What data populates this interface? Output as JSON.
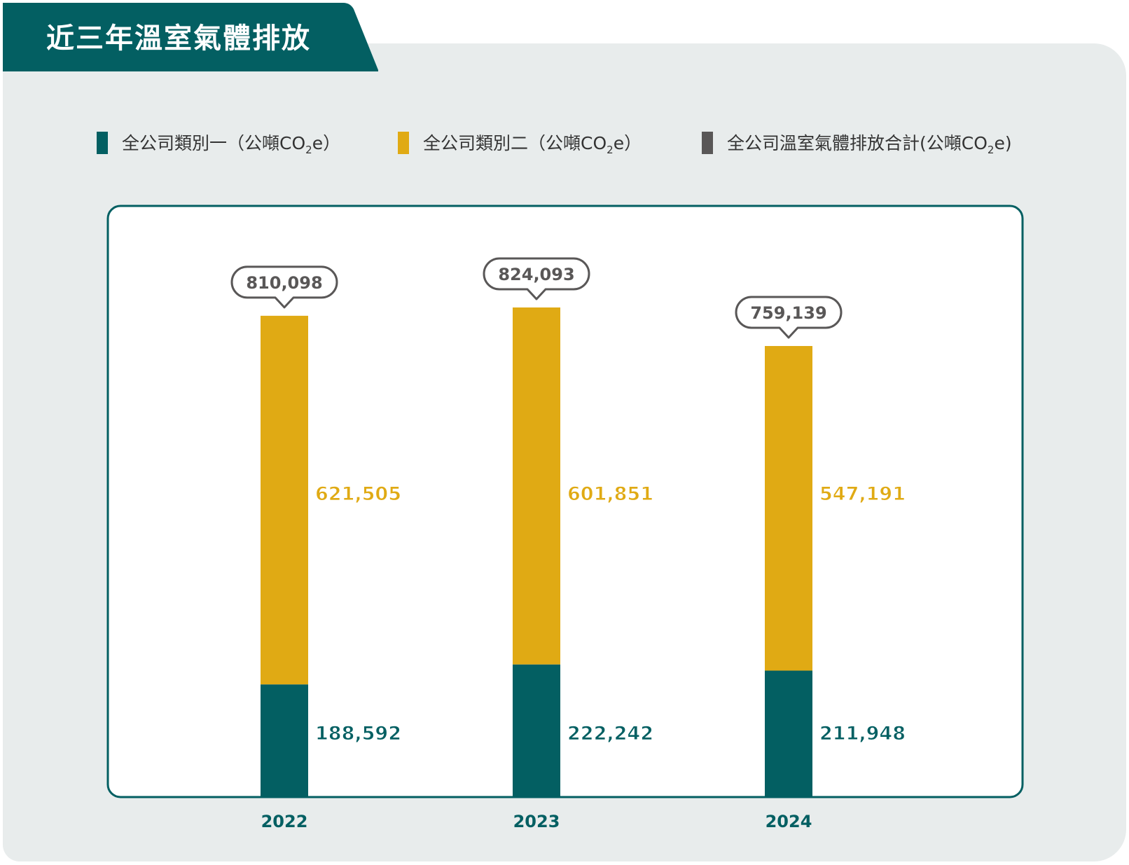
{
  "title": "近三年溫室氣體排放",
  "legend": [
    {
      "label_main": "全公司類別一（公噸CO",
      "label_sub": "2",
      "label_tail": "e）",
      "color": "#035f62"
    },
    {
      "label_main": "全公司類別二（公噸CO",
      "label_sub": "2",
      "label_tail": "e）",
      "color": "#e0aa14"
    },
    {
      "label_main": "全公司溫室氣體排放合計(公噸CO",
      "label_sub": "2",
      "label_tail": "e)",
      "color": "#595757"
    }
  ],
  "colors": {
    "header": "#035f62",
    "panel": "#e8ecec",
    "scope1": "#035f62",
    "scope2": "#e0aa14",
    "total": "#595757",
    "frame": "#035f62"
  },
  "chart_data": {
    "type": "bar",
    "stacked": true,
    "categories": [
      "2022",
      "2023",
      "2024"
    ],
    "series": [
      {
        "name": "全公司類別一（公噸CO2e）",
        "values": [
          188592,
          222242,
          211948
        ],
        "labels": [
          "188,592",
          "222,242",
          "211,948"
        ]
      },
      {
        "name": "全公司類別二（公噸CO2e）",
        "values": [
          621505,
          601851,
          547191
        ],
        "labels": [
          "621,505",
          "601,851",
          "547,191"
        ]
      }
    ],
    "totals": {
      "name": "全公司溫室氣體排放合計(公噸CO2e)",
      "values": [
        810098,
        824093,
        759139
      ],
      "labels": [
        "810,098",
        "824,093",
        "759,139"
      ]
    },
    "ylim": [
      0,
      880000
    ],
    "grid": false,
    "legend_position": "top"
  }
}
